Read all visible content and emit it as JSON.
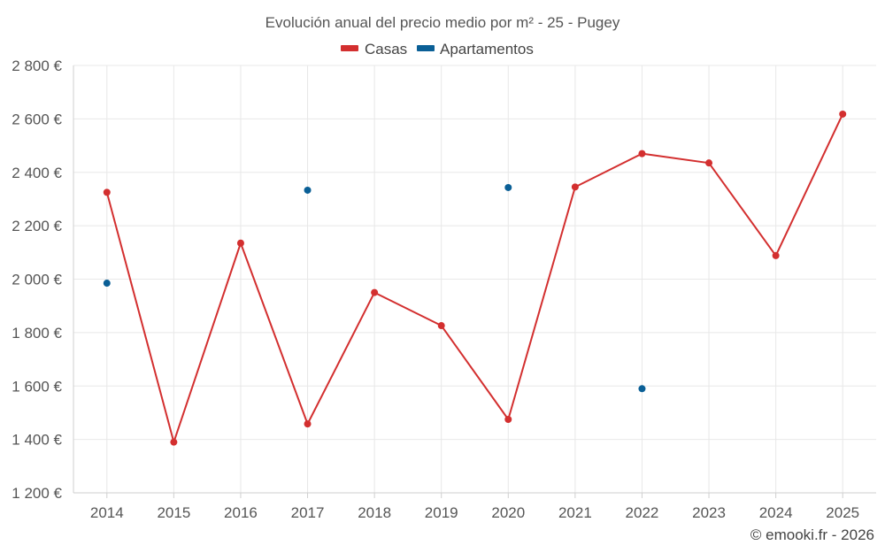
{
  "chart_data": {
    "type": "line",
    "title": "Evolución anual del precio medio por m² - 25 - Pugey",
    "categories": [
      "2014",
      "2015",
      "2016",
      "2017",
      "2018",
      "2019",
      "2020",
      "2021",
      "2022",
      "2023",
      "2024",
      "2025"
    ],
    "series": [
      {
        "name": "Casas",
        "color": "#d32f2f",
        "style": "line",
        "values": [
          2325,
          1390,
          2135,
          1458,
          1950,
          1826,
          1475,
          2345,
          2470,
          2435,
          2088,
          2618
        ]
      },
      {
        "name": "Apartamentos",
        "color": "#0a5f96",
        "style": "points",
        "values": [
          1985,
          null,
          null,
          2333,
          null,
          null,
          2343,
          null,
          1590,
          null,
          null,
          null
        ]
      }
    ],
    "ylim": [
      1200,
      2800
    ],
    "yticks": [
      1200,
      1400,
      1600,
      1800,
      2000,
      2200,
      2400,
      2600,
      2800
    ],
    "ytick_labels": [
      "1 200 €",
      "1 400 €",
      "1 600 €",
      "1 800 €",
      "2 000 €",
      "2 200 €",
      "2 400 €",
      "2 600 €",
      "2 800 €"
    ],
    "xlabel": "",
    "ylabel": "",
    "grid": true,
    "legend_position": "top-center"
  },
  "credit": "© emooki.fr - 2026"
}
